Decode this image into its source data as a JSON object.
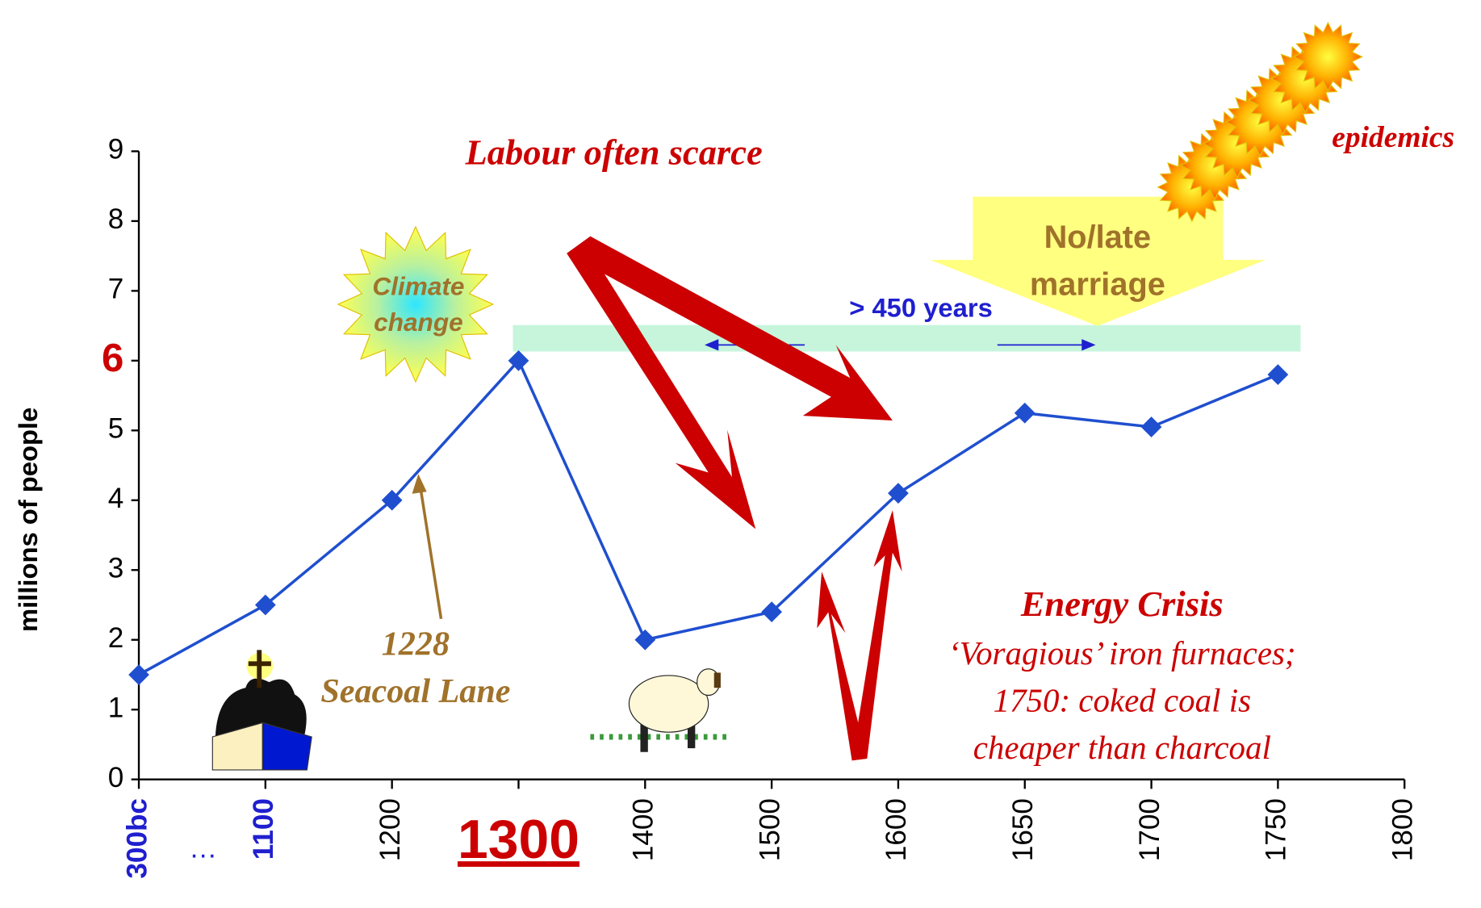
{
  "chart_data": {
    "type": "line",
    "ylabel": "millions of people",
    "categories": [
      "300bc",
      "1100",
      "1200",
      "1300",
      "1400",
      "1500",
      "1600",
      "1650",
      "1700",
      "1750",
      "1800"
    ],
    "values": [
      1.5,
      2.5,
      4.0,
      6.0,
      2.0,
      2.4,
      4.1,
      5.25,
      5.05,
      5.8,
      null
    ],
    "color": "#1f4fcf",
    "ylim": [
      0,
      9
    ],
    "yticks": [
      0,
      1,
      2,
      3,
      4,
      5,
      6,
      7,
      8,
      9
    ],
    "annotations": {
      "ellipsis": "…",
      "labour": "Labour often scarce",
      "epidemics": "epidemics",
      "marriage": [
        "No/late",
        "marriage"
      ],
      "span": "> 450 years",
      "climate": [
        "Climate",
        "change"
      ],
      "seacoal": [
        "1228",
        "Seacoal Lane"
      ],
      "energy": "Energy Crisis",
      "energy_note": [
        "‘Voragious’ iron furnaces;",
        "1750: coked coal is",
        "cheaper than charcoal"
      ]
    }
  }
}
